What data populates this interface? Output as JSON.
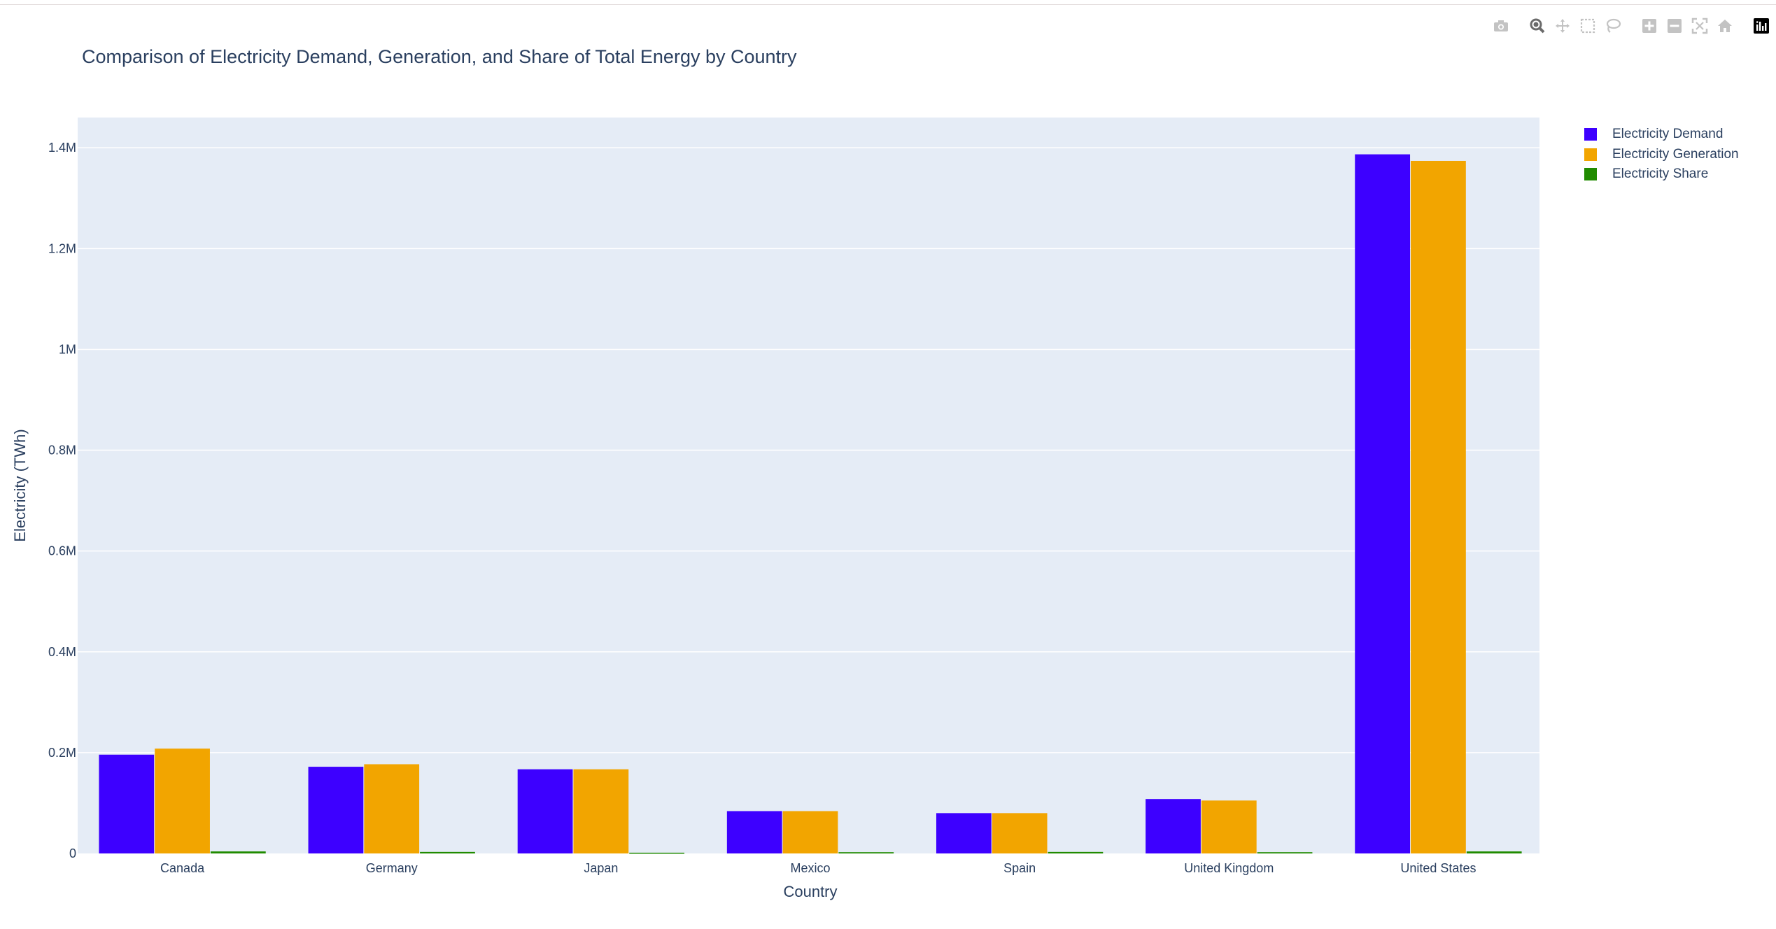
{
  "title": "Comparison of Electricity Demand, Generation, and Share of Total Energy by Country",
  "modebar": {
    "icons": [
      "camera-icon",
      "zoom-icon",
      "pan-icon",
      "box-select-icon",
      "lasso-select-icon",
      "zoom-in-icon",
      "zoom-out-icon",
      "autoscale-icon",
      "reset-axes-icon",
      "plotly-logo-icon"
    ]
  },
  "colors": {
    "plot_bg": "#e5ecf6",
    "grid": "#ffffff",
    "text": "#2a3f5f",
    "demand": "#3d00ff",
    "generation": "#f2a500",
    "share": "#208b00"
  },
  "chart_data": {
    "type": "bar",
    "title": "Comparison of Electricity Demand, Generation, and Share of Total Energy by Country",
    "xlabel": "Country",
    "ylabel": "Electricity (TWh)",
    "categories": [
      "Canada",
      "Germany",
      "Japan",
      "Mexico",
      "Spain",
      "United Kingdom",
      "United States"
    ],
    "ylim": [
      0,
      1460000
    ],
    "yticks": [
      0,
      200000,
      400000,
      600000,
      800000,
      1000000,
      1200000,
      1400000
    ],
    "ytick_labels": [
      "0",
      "0.2M",
      "0.4M",
      "0.6M",
      "0.8M",
      "1M",
      "1.2M",
      "1.4M"
    ],
    "grid": true,
    "legend_position": "top-right",
    "series": [
      {
        "name": "Electricity Demand",
        "color": "#3d00ff",
        "values": [
          196000,
          172000,
          167000,
          84000,
          80000,
          108000,
          1387000
        ]
      },
      {
        "name": "Electricity Generation",
        "color": "#f2a500",
        "values": [
          208000,
          177000,
          167000,
          84000,
          80000,
          105000,
          1374000
        ]
      },
      {
        "name": "Electricity Share",
        "color": "#208b00",
        "values": [
          4000,
          3000,
          1500,
          2500,
          3000,
          2500,
          4000
        ]
      }
    ]
  }
}
